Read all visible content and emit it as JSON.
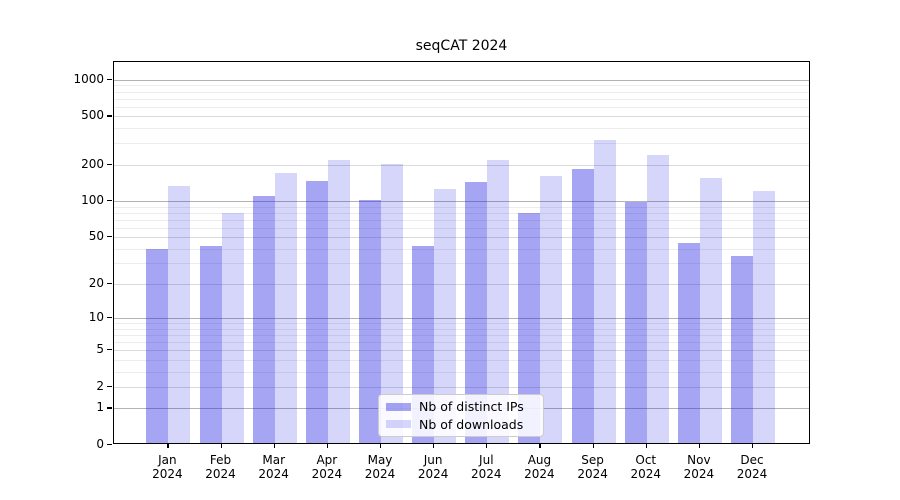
{
  "figure": {
    "background": "#ffffff",
    "spine_color": "#000000",
    "gridline_major_color": "#b3b3b3",
    "gridline_minor_color": "#ececec"
  },
  "chart_data": {
    "type": "bar",
    "title": "seqCAT 2024",
    "categories": [
      "Jan 2024",
      "Feb 2024",
      "Mar 2024",
      "Apr 2024",
      "May 2024",
      "Jun 2024",
      "Jul 2024",
      "Aug 2024",
      "Sep 2024",
      "Oct 2024",
      "Nov 2024",
      "Dec 2024"
    ],
    "series": [
      {
        "name": "Nb of distinct IPs",
        "color": "rgba(30,30,225,0.40)",
        "values": [
          40,
          42,
          111,
          146,
          102,
          42,
          145,
          80,
          185,
          98,
          45,
          35
        ]
      },
      {
        "name": "Nb of downloads",
        "color": "rgba(30,30,225,0.18)",
        "values": [
          134,
          80,
          170,
          218,
          202,
          126,
          220,
          161,
          320,
          238,
          155,
          120
        ]
      }
    ],
    "yscale": "log1p",
    "yticks": [
      0,
      1,
      2,
      5,
      10,
      20,
      50,
      100,
      200,
      500,
      1000
    ],
    "ylim": [
      0,
      1400
    ],
    "grid": true,
    "legend_position": "lower center"
  }
}
